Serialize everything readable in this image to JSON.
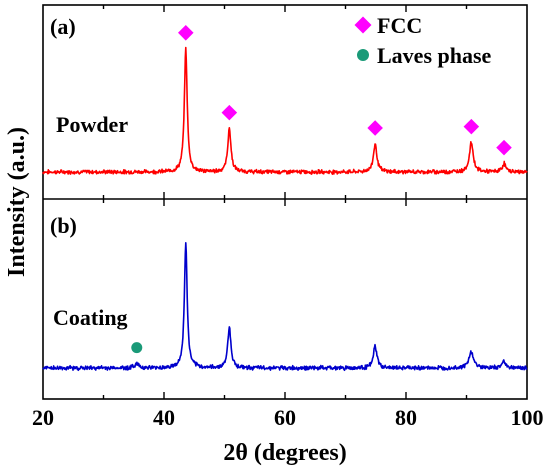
{
  "chart_data": {
    "type": "line",
    "xlabel": "2θ (degrees)",
    "ylabel": "Intensity (a.u.)",
    "xlim": [
      20,
      100
    ],
    "x_ticks": [
      "20",
      "40",
      "60",
      "80",
      "100"
    ],
    "legend": {
      "placement": "top-right",
      "entries": [
        {
          "name": "FCC",
          "marker": "diamond",
          "color": "#ff00ff"
        },
        {
          "name": "Laves phase",
          "marker": "circle",
          "color": "#1a9a78"
        }
      ]
    },
    "panels": [
      {
        "panel_label": "(a)",
        "series_label": "Powder",
        "color": "#ff0000",
        "peaks": [
          {
            "x": 43.6,
            "height": 0.88,
            "width": 0.28
          },
          {
            "x": 50.8,
            "height": 0.31,
            "width": 0.32
          },
          {
            "x": 74.9,
            "height": 0.2,
            "width": 0.35
          },
          {
            "x": 90.8,
            "height": 0.21,
            "width": 0.38
          },
          {
            "x": 96.2,
            "height": 0.06,
            "width": 0.35
          }
        ],
        "markers": [
          {
            "x": 43.6,
            "type": "FCC"
          },
          {
            "x": 50.8,
            "type": "FCC"
          },
          {
            "x": 74.9,
            "type": "FCC"
          },
          {
            "x": 90.8,
            "type": "FCC"
          },
          {
            "x": 96.2,
            "type": "FCC"
          }
        ]
      },
      {
        "panel_label": "(b)",
        "series_label": "Coating",
        "color": "#0000cc",
        "peaks": [
          {
            "x": 35.5,
            "height": 0.03,
            "width": 0.4
          },
          {
            "x": 43.6,
            "height": 0.85,
            "width": 0.28
          },
          {
            "x": 50.8,
            "height": 0.28,
            "width": 0.32
          },
          {
            "x": 74.9,
            "height": 0.15,
            "width": 0.35
          },
          {
            "x": 90.8,
            "height": 0.11,
            "width": 0.45
          },
          {
            "x": 96.2,
            "height": 0.05,
            "width": 0.35
          }
        ],
        "markers": [
          {
            "x": 35.5,
            "type": "Laves phase"
          }
        ]
      }
    ]
  }
}
